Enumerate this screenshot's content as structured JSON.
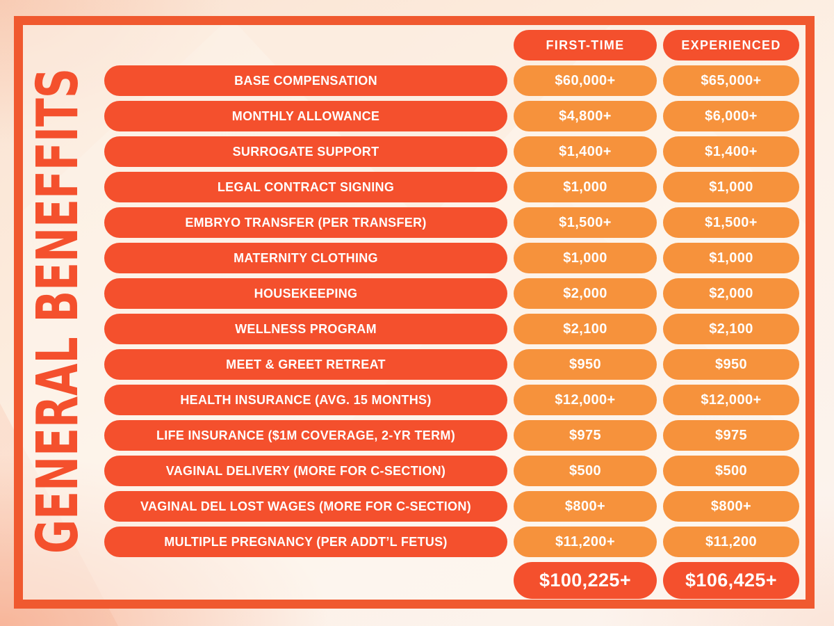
{
  "title": "GENERAL BENEFFITS",
  "colors": {
    "red": "#F4502D",
    "orange": "#F6923C",
    "frame": "#F0592F",
    "title": "#F4502D",
    "text": "#FFFFFF"
  },
  "chart_data": {
    "type": "table",
    "title": "GENERAL BENEFFITS",
    "column_headers": [
      "FIRST-TIME",
      "EXPERIENCED"
    ],
    "rows": [
      {
        "label": "BASE COMPENSATION",
        "values": [
          "$60,000+",
          "$65,000+"
        ]
      },
      {
        "label": "MONTHLY ALLOWANCE",
        "values": [
          "$4,800+",
          "$6,000+"
        ]
      },
      {
        "label": "SURROGATE SUPPORT",
        "values": [
          "$1,400+",
          "$1,400+"
        ]
      },
      {
        "label": "LEGAL CONTRACT SIGNING",
        "values": [
          "$1,000",
          "$1,000"
        ]
      },
      {
        "label": "EMBRYO TRANSFER (PER TRANSFER)",
        "values": [
          "$1,500+",
          "$1,500+"
        ]
      },
      {
        "label": "MATERNITY CLOTHING",
        "values": [
          "$1,000",
          "$1,000"
        ]
      },
      {
        "label": "HOUSEKEEPING",
        "values": [
          "$2,000",
          "$2,000"
        ]
      },
      {
        "label": "WELLNESS PROGRAM",
        "values": [
          "$2,100",
          "$2,100"
        ]
      },
      {
        "label": "MEET & GREET RETREAT",
        "values": [
          "$950",
          "$950"
        ]
      },
      {
        "label": "HEALTH INSURANCE (AVG. 15 MONTHS)",
        "values": [
          "$12,000+",
          "$12,000+"
        ]
      },
      {
        "label": "LIFE INSURANCE ($1M COVERAGE, 2-YR TERM)",
        "values": [
          "$975",
          "$975"
        ]
      },
      {
        "label": "VAGINAL DELIVERY (MORE FOR C-SECTION)",
        "values": [
          "$500",
          "$500"
        ]
      },
      {
        "label": "VAGINAL DEL LOST WAGES (MORE FOR C-SECTION)",
        "values": [
          "$800+",
          "$800+"
        ]
      },
      {
        "label": "MULTIPLE PREGNANCY (PER ADDT’L FETUS)",
        "values": [
          "$11,200+",
          "$11,200"
        ]
      }
    ],
    "totals": [
      "$100,225+",
      "$106,425+"
    ]
  }
}
